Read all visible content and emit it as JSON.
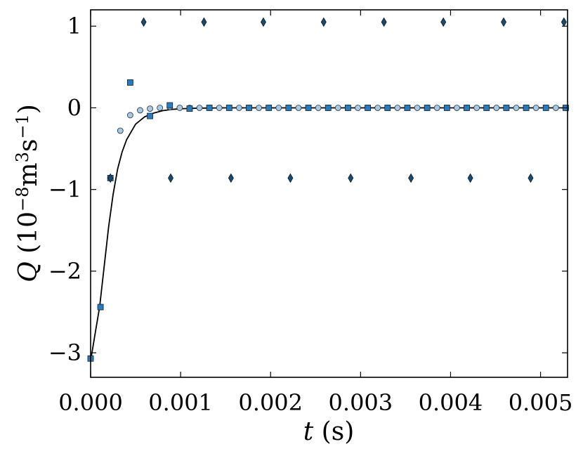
{
  "chart_data": {
    "type": "scatter",
    "xlabel": {
      "symbol": "t",
      "unit": "(s)"
    },
    "ylabel": {
      "symbol": "Q",
      "unit_open": "(10",
      "exp1": "−8",
      "mid": "m",
      "exp2": "3",
      "mid2": "s",
      "exp3": "−1",
      "close": ")"
    },
    "xlim": [
      0,
      0.0053
    ],
    "ylim": [
      -3.3,
      1.2
    ],
    "xticks": [
      {
        "value": 0.0,
        "label": "0.000"
      },
      {
        "value": 0.001,
        "label": "0.001"
      },
      {
        "value": 0.002,
        "label": "0.002"
      },
      {
        "value": 0.003,
        "label": "0.003"
      },
      {
        "value": 0.004,
        "label": "0.004"
      },
      {
        "value": 0.005,
        "label": "0.005"
      }
    ],
    "yticks": [
      {
        "value": 1,
        "label": "1"
      },
      {
        "value": 0,
        "label": "0"
      },
      {
        "value": -1,
        "label": "−1"
      },
      {
        "value": -2,
        "label": "−2"
      },
      {
        "value": -3,
        "label": "−3"
      }
    ],
    "grid": false,
    "line": {
      "color": "#000000",
      "x": [
        0.0,
        3e-05,
        6e-05,
        0.0001,
        0.00015,
        0.0002,
        0.00025,
        0.0003,
        0.00035,
        0.0004,
        0.0005,
        0.0006,
        0.0007,
        0.0008,
        0.0009,
        0.001,
        0.0012,
        0.0015,
        0.002,
        0.003,
        0.004,
        0.0053
      ],
      "y": [
        -3.1,
        -2.9,
        -2.7,
        -2.44,
        -1.95,
        -1.46,
        -1.06,
        -0.75,
        -0.54,
        -0.39,
        -0.2,
        -0.11,
        -0.065,
        -0.035,
        -0.02,
        -0.011,
        -0.004,
        0.0,
        0.0,
        0.0,
        0.0,
        0.0
      ]
    },
    "series": [
      {
        "marker": "circle",
        "color": "#aac8e0",
        "x": [
          0.0,
          0.00011,
          0.00022,
          0.00033,
          0.00044,
          0.00055,
          0.00066,
          0.00077,
          0.00088,
          0.00099,
          0.0011,
          0.00121,
          0.00132,
          0.00143,
          0.00154,
          0.00165,
          0.00176,
          0.00187,
          0.00198,
          0.00209,
          0.0022,
          0.00231,
          0.00242,
          0.00253,
          0.00264,
          0.00275,
          0.00286,
          0.00297,
          0.00308,
          0.00319,
          0.0033,
          0.00341,
          0.00352,
          0.00363,
          0.00374,
          0.00385,
          0.00396,
          0.00407,
          0.00418,
          0.00429,
          0.0044,
          0.00451,
          0.00462,
          0.00473,
          0.00484,
          0.00495,
          0.00506,
          0.00517,
          0.00528
        ],
        "y": [
          -3.07,
          -2.44,
          -0.86,
          -0.28,
          -0.09,
          -0.03,
          -0.01,
          0.0,
          0.01,
          0.0,
          0.0,
          0.0,
          0.0,
          0.0,
          0.0,
          0.0,
          0.0,
          0.0,
          0.0,
          0.0,
          0.0,
          0.0,
          0.0,
          0.0,
          0.0,
          0.0,
          0.0,
          0.0,
          0.0,
          0.0,
          0.0,
          0.0,
          0.0,
          0.0,
          0.0,
          0.0,
          0.0,
          0.0,
          0.0,
          0.0,
          0.0,
          0.0,
          0.0,
          0.0,
          0.0,
          0.0,
          0.0,
          0.0,
          0.0
        ]
      },
      {
        "marker": "square",
        "color": "#2b7bba",
        "x": [
          0.0,
          0.00011,
          0.00022,
          0.00044,
          0.00066,
          0.00088,
          0.0011,
          0.00132,
          0.00154,
          0.00176,
          0.00198,
          0.0022,
          0.00242,
          0.00264,
          0.00286,
          0.00308,
          0.0033,
          0.00352,
          0.00374,
          0.00396,
          0.00418,
          0.0044,
          0.00462,
          0.00484,
          0.00506,
          0.00528
        ],
        "y": [
          -3.07,
          -2.44,
          -0.86,
          0.31,
          -0.1,
          0.03,
          -0.01,
          0.0,
          0.0,
          0.0,
          0.0,
          0.0,
          0.0,
          0.0,
          0.0,
          0.0,
          0.0,
          0.0,
          0.0,
          0.0,
          0.0,
          0.0,
          0.0,
          0.0,
          0.0,
          0.0
        ]
      },
      {
        "marker": "diamond",
        "color": "#1a4a6e",
        "x": [
          0.00022,
          0.00059,
          0.00089,
          0.00126,
          0.00156,
          0.00192,
          0.00222,
          0.00259,
          0.00289,
          0.00326,
          0.00356,
          0.00392,
          0.00422,
          0.00459,
          0.00489,
          0.00526
        ],
        "y": [
          -0.86,
          1.05,
          -0.86,
          1.05,
          -0.86,
          1.05,
          -0.86,
          1.05,
          -0.86,
          1.05,
          -0.86,
          1.05,
          -0.86,
          1.05,
          -0.86,
          1.05
        ]
      }
    ]
  }
}
